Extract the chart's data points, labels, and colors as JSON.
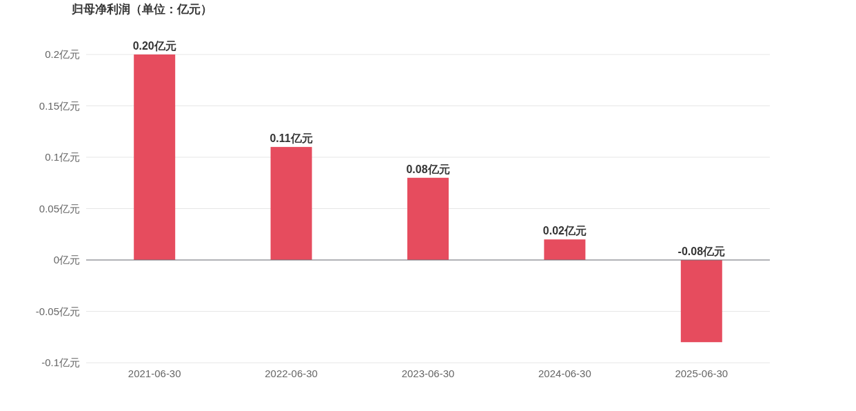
{
  "chart_data": {
    "type": "bar",
    "title": "归母净利润（单位：亿元）",
    "categories": [
      "2021-06-30",
      "2022-06-30",
      "2023-06-30",
      "2024-06-30",
      "2025-06-30"
    ],
    "values": [
      0.2,
      0.11,
      0.08,
      0.02,
      -0.08
    ],
    "value_labels": [
      "0.20亿元",
      "0.11亿元",
      "0.08亿元",
      "0.02亿元",
      "-0.08亿元"
    ],
    "color": "#e64c5e",
    "ylim": [
      -0.1,
      0.2
    ],
    "yticks": [
      {
        "value": -0.1,
        "label": "-0.1亿元"
      },
      {
        "value": -0.05,
        "label": "-0.05亿元"
      },
      {
        "value": 0,
        "label": "0亿元"
      },
      {
        "value": 0.05,
        "label": "0.05亿元"
      },
      {
        "value": 0.1,
        "label": "0.1亿元"
      },
      {
        "value": 0.15,
        "label": "0.15亿元"
      },
      {
        "value": 0.2,
        "label": "0.2亿元"
      }
    ],
    "grid": "y"
  }
}
